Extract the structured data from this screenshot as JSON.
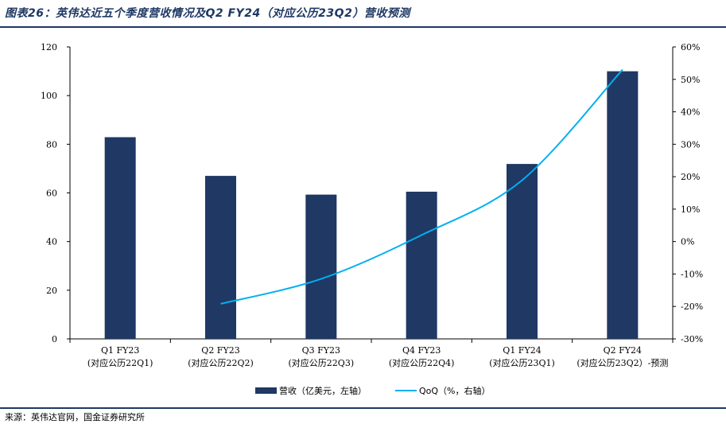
{
  "header": {
    "title": "图表26：英伟达近五个季度营收情况及Q2 FY24（对应公历23Q2）营收预测"
  },
  "footer": {
    "source": "来源：英伟达官网，国金证券研究所"
  },
  "colors": {
    "bar": "#1f3864",
    "line": "#00b0f0",
    "rule": "#1f3864"
  },
  "chart_data": {
    "type": "bar",
    "categories": [
      [
        "Q1 FY23",
        "(对应公历22Q1)"
      ],
      [
        "Q2 FY23",
        "(对应公历22Q2)"
      ],
      [
        "Q3 FY23",
        "(对应公历22Q3)"
      ],
      [
        "Q4 FY23",
        "(对应公历22Q4)"
      ],
      [
        "Q1 FY24",
        "(对应公历23Q1)"
      ],
      [
        "Q2 FY24",
        "(对应公历23Q2）-预测"
      ]
    ],
    "series": [
      {
        "name": "营收（亿美元，左轴）",
        "type": "bar",
        "axis": "left",
        "values": [
          82.9,
          67.0,
          59.3,
          60.5,
          71.9,
          110.0
        ]
      },
      {
        "name": "QoQ（%，右轴）",
        "type": "line",
        "axis": "right",
        "values": [
          null,
          -19.2,
          -11.5,
          2.0,
          18.9,
          53.0
        ]
      }
    ],
    "left_axis": {
      "ylim": [
        0,
        120
      ],
      "ticks": [
        "0",
        "20",
        "40",
        "60",
        "80",
        "100",
        "120"
      ]
    },
    "right_axis": {
      "ylim": [
        -30,
        60
      ],
      "ticks": [
        "-30%",
        "-20%",
        "-10%",
        "0%",
        "10%",
        "20%",
        "30%",
        "40%",
        "50%",
        "60%"
      ]
    },
    "legend": {
      "position": "bottom",
      "labels": [
        "营收（亿美元，左轴）",
        "QoQ（%，右轴）"
      ]
    },
    "grid": false
  }
}
